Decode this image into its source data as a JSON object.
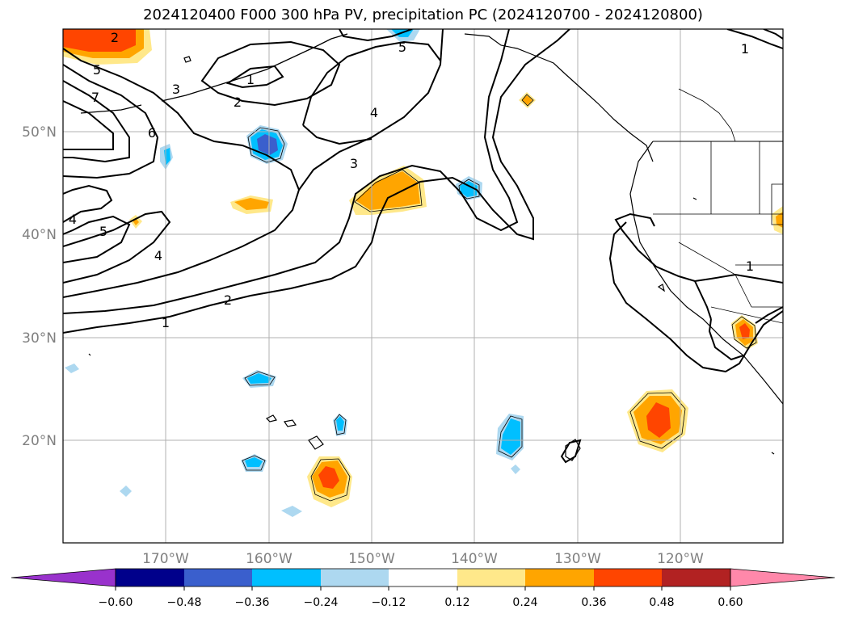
{
  "title": "2024120400 F000 300 hPa PV, precipitation PC (2024120700 - 2024120800)",
  "lat_labels": [
    "50°N",
    "40°N",
    "30°N",
    "20°N"
  ],
  "lon_labels": [
    "170°W",
    "160°W",
    "150°W",
    "140°W",
    "130°W",
    "120°W"
  ],
  "contour_labels": [
    "2",
    "5",
    "7",
    "6",
    "3",
    "4",
    "5",
    "4",
    "2",
    "1",
    "3",
    "4",
    "5",
    "2",
    "1",
    "1",
    "1"
  ],
  "colorbar": {
    "tick_labels": [
      "−0.60",
      "−0.48",
      "−0.36",
      "−0.24",
      "−0.12",
      "0.12",
      "0.24",
      "0.36",
      "0.48",
      "0.60"
    ],
    "colors": [
      "#9932cc",
      "#00008b",
      "#3a5fcd",
      "#00bfff",
      "#add8f0",
      "#ffffff",
      "#ffe88a",
      "#ffa500",
      "#ff4500",
      "#b22222",
      "#ff88aa"
    ]
  },
  "colors": {
    "gridline": "#b0b0b0",
    "coast": "#000000",
    "pv_contour": "#000000"
  }
}
